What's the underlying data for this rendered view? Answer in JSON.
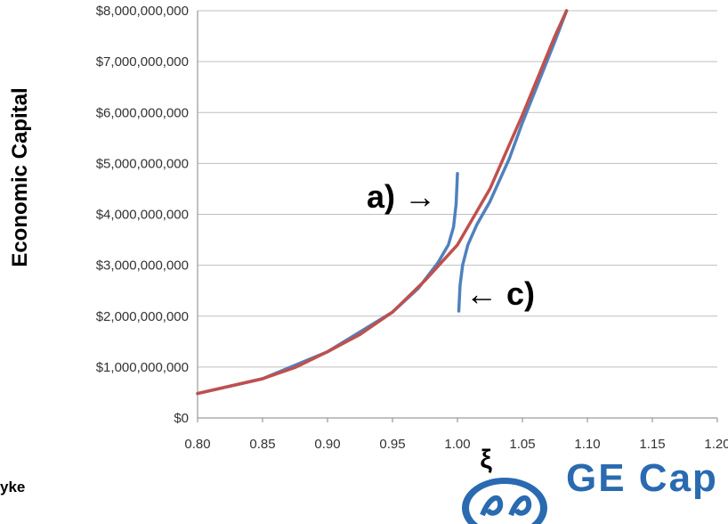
{
  "chart_data": {
    "type": "line",
    "xlabel": "ξ",
    "ylabel": "Economic Capital",
    "xlim": [
      0.8,
      1.2
    ],
    "ylim": [
      0,
      8000000000
    ],
    "x_ticks": [
      "0.80",
      "0.85",
      "0.90",
      "0.95",
      "1.00",
      "1.05",
      "1.10",
      "1.15",
      "1.20"
    ],
    "y_ticks": [
      "$0",
      "$1,000,000,000",
      "$2,000,000,000",
      "$3,000,000,000",
      "$4,000,000,000",
      "$5,000,000,000",
      "$6,000,000,000",
      "$7,000,000,000",
      "$8,000,000,000"
    ],
    "grid": "horizontal",
    "series": [
      {
        "color": "#c0504d",
        "x": [
          0.8,
          0.85,
          0.875,
          0.9,
          0.925,
          0.95,
          0.975,
          1.0,
          1.025,
          1.05,
          1.075,
          1.084
        ],
        "y": [
          480000000,
          770000000,
          990000000,
          1300000000,
          1640000000,
          2080000000,
          2700000000,
          3400000000,
          4500000000,
          5950000000,
          7500000000,
          8000000000
        ]
      },
      {
        "color": "#4f81bd",
        "x": [
          0.8,
          0.85,
          0.9,
          0.95,
          0.97,
          0.985,
          0.993,
          0.997,
          0.999,
          1.0
        ],
        "y": [
          480000000,
          770000000,
          1300000000,
          2080000000,
          2550000000,
          3050000000,
          3400000000,
          3750000000,
          4200000000,
          4800000000
        ]
      },
      {
        "color": "#4f81bd",
        "x": [
          1.001,
          1.002,
          1.004,
          1.008,
          1.015,
          1.025,
          1.04,
          1.05,
          1.075,
          1.084
        ],
        "y": [
          2100000000,
          2600000000,
          3000000000,
          3400000000,
          3800000000,
          4250000000,
          5100000000,
          5800000000,
          7400000000,
          8000000000
        ]
      }
    ],
    "annotations": [
      "a) →",
      "← c)"
    ]
  },
  "footer": {
    "left_text": "yke",
    "right_text": "GE Cap"
  },
  "colors": {
    "grid": "#bfbfbf",
    "axis": "#868686",
    "logo": "#2a6ab0"
  }
}
